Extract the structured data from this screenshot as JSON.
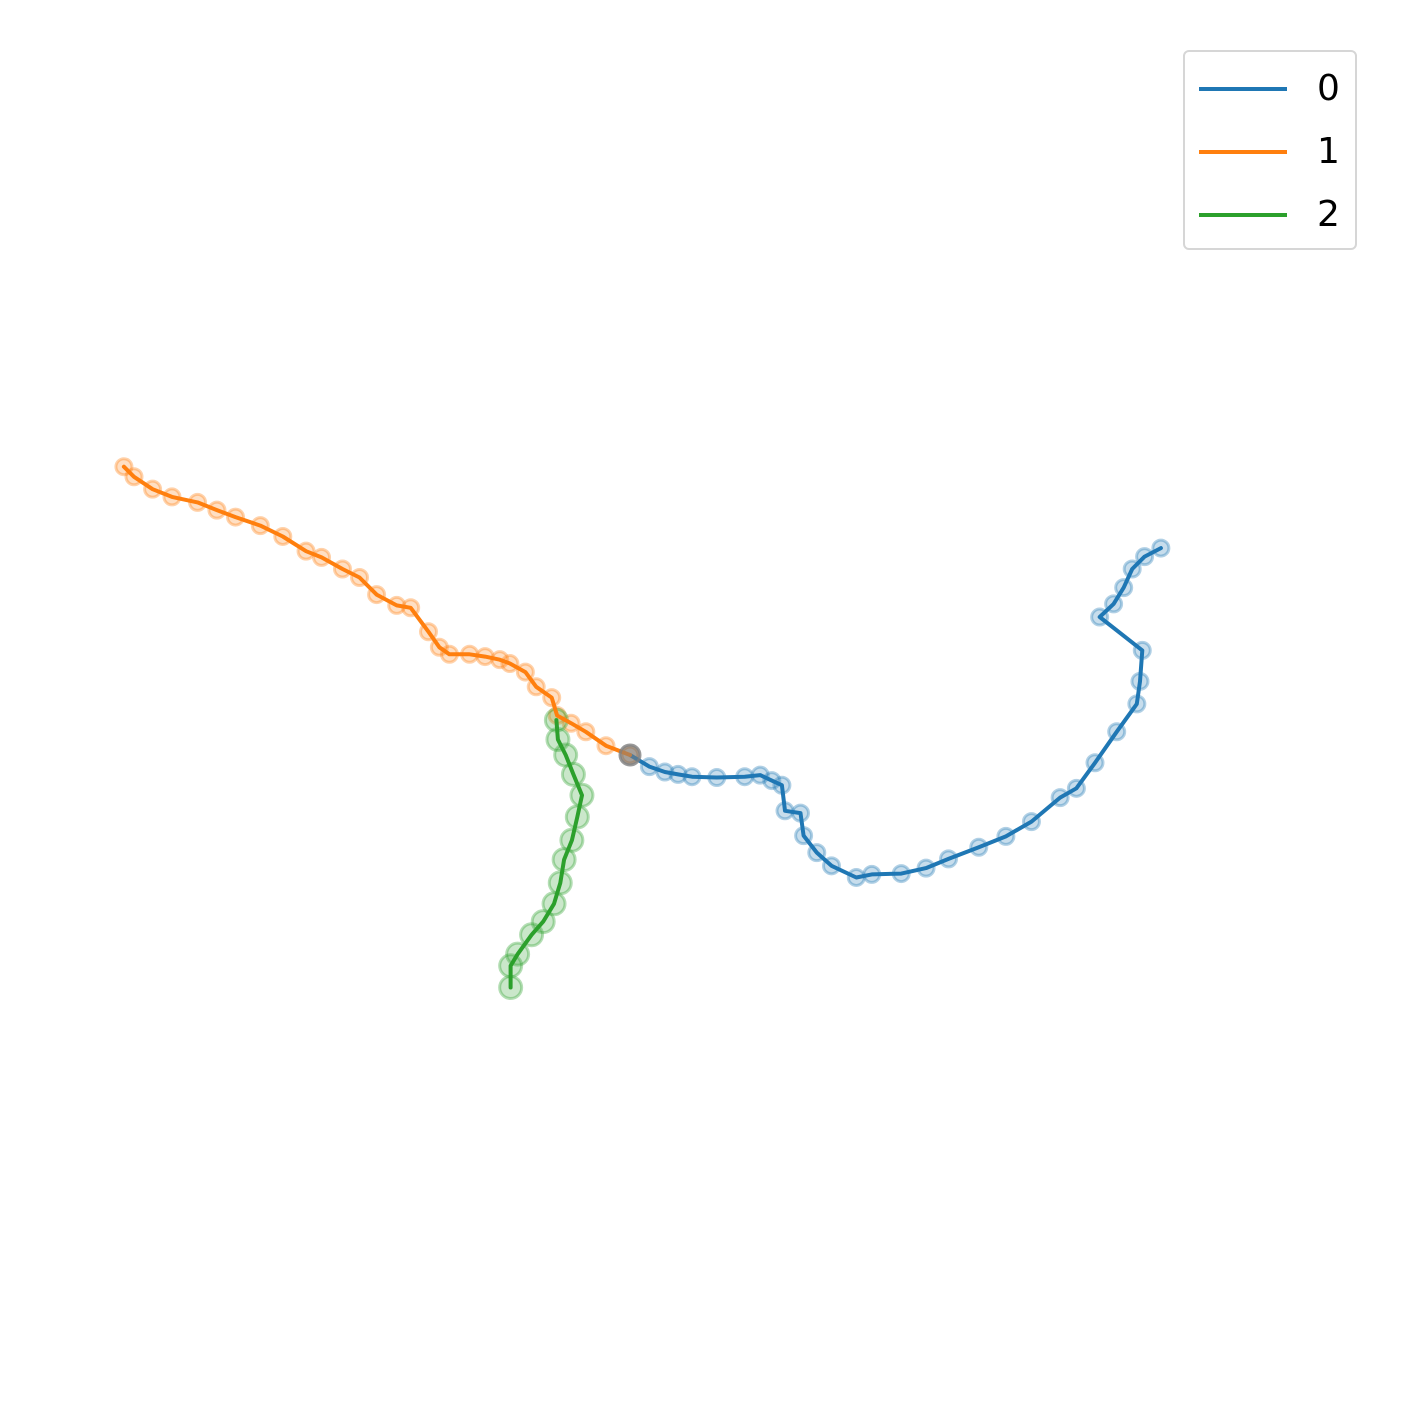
{
  "chart_data": {
    "type": "line",
    "axes_visible": false,
    "legend_position": "top-right",
    "origin": [
      0.0,
      0.0
    ],
    "origin_color": "#7f7f7f",
    "xlim": [
      -10,
      10
    ],
    "ylim": [
      -10,
      10
    ],
    "series": [
      {
        "name": "0",
        "color": "#1f77b4",
        "points": [
          [
            0.0,
            0.0
          ],
          [
            0.25,
            -0.15
          ],
          [
            0.45,
            -0.22
          ],
          [
            0.62,
            -0.25
          ],
          [
            0.8,
            -0.28
          ],
          [
            1.12,
            -0.29
          ],
          [
            1.48,
            -0.28
          ],
          [
            1.68,
            -0.26
          ],
          [
            1.83,
            -0.33
          ],
          [
            1.96,
            -0.39
          ],
          [
            2.0,
            -0.72
          ],
          [
            2.2,
            -0.75
          ],
          [
            2.24,
            -1.04
          ],
          [
            2.41,
            -1.26
          ],
          [
            2.6,
            -1.43
          ],
          [
            2.92,
            -1.58
          ],
          [
            3.12,
            -1.54
          ],
          [
            3.5,
            -1.53
          ],
          [
            3.82,
            -1.46
          ],
          [
            4.11,
            -1.34
          ],
          [
            4.5,
            -1.19
          ],
          [
            4.85,
            -1.05
          ],
          [
            5.18,
            -0.86
          ],
          [
            5.55,
            -0.55
          ],
          [
            5.76,
            -0.43
          ],
          [
            6.0,
            -0.1
          ],
          [
            6.28,
            0.3
          ],
          [
            6.54,
            0.66
          ],
          [
            6.58,
            0.95
          ],
          [
            6.61,
            1.35
          ],
          [
            6.06,
            1.78
          ],
          [
            6.24,
            1.95
          ],
          [
            6.37,
            2.16
          ],
          [
            6.48,
            2.4
          ],
          [
            6.64,
            2.56
          ],
          [
            6.85,
            2.67
          ]
        ]
      },
      {
        "name": "1",
        "color": "#ff7f0e",
        "points": [
          [
            0.0,
            0.0
          ],
          [
            -0.31,
            0.12
          ],
          [
            -0.57,
            0.3
          ],
          [
            -0.76,
            0.41
          ],
          [
            -0.94,
            0.51
          ],
          [
            -1.01,
            0.74
          ],
          [
            -1.21,
            0.88
          ],
          [
            -1.35,
            1.07
          ],
          [
            -1.55,
            1.18
          ],
          [
            -1.68,
            1.23
          ],
          [
            -1.87,
            1.27
          ],
          [
            -2.07,
            1.3
          ],
          [
            -2.33,
            1.3
          ],
          [
            -2.46,
            1.39
          ],
          [
            -2.6,
            1.59
          ],
          [
            -2.83,
            1.9
          ],
          [
            -3.01,
            1.93
          ],
          [
            -3.27,
            2.07
          ],
          [
            -3.49,
            2.29
          ],
          [
            -3.71,
            2.4
          ],
          [
            -3.98,
            2.55
          ],
          [
            -4.18,
            2.63
          ],
          [
            -4.48,
            2.82
          ],
          [
            -4.77,
            2.96
          ],
          [
            -5.09,
            3.07
          ],
          [
            -5.33,
            3.16
          ],
          [
            -5.58,
            3.26
          ],
          [
            -5.91,
            3.33
          ],
          [
            -6.16,
            3.43
          ],
          [
            -6.4,
            3.59
          ],
          [
            -6.53,
            3.72
          ]
        ]
      },
      {
        "name": "2",
        "color": "#2ca02c",
        "points": [
          [
            -0.95,
            0.45
          ],
          [
            -0.93,
            0.2
          ],
          [
            -0.83,
            0.0
          ],
          [
            -0.73,
            -0.25
          ],
          [
            -0.62,
            -0.52
          ],
          [
            -0.68,
            -0.8
          ],
          [
            -0.75,
            -1.1
          ],
          [
            -0.85,
            -1.35
          ],
          [
            -0.9,
            -1.65
          ],
          [
            -0.98,
            -1.92
          ],
          [
            -1.12,
            -2.15
          ],
          [
            -1.27,
            -2.32
          ],
          [
            -1.45,
            -2.57
          ],
          [
            -1.54,
            -2.72
          ],
          [
            -1.54,
            -3.0
          ]
        ]
      }
    ]
  }
}
